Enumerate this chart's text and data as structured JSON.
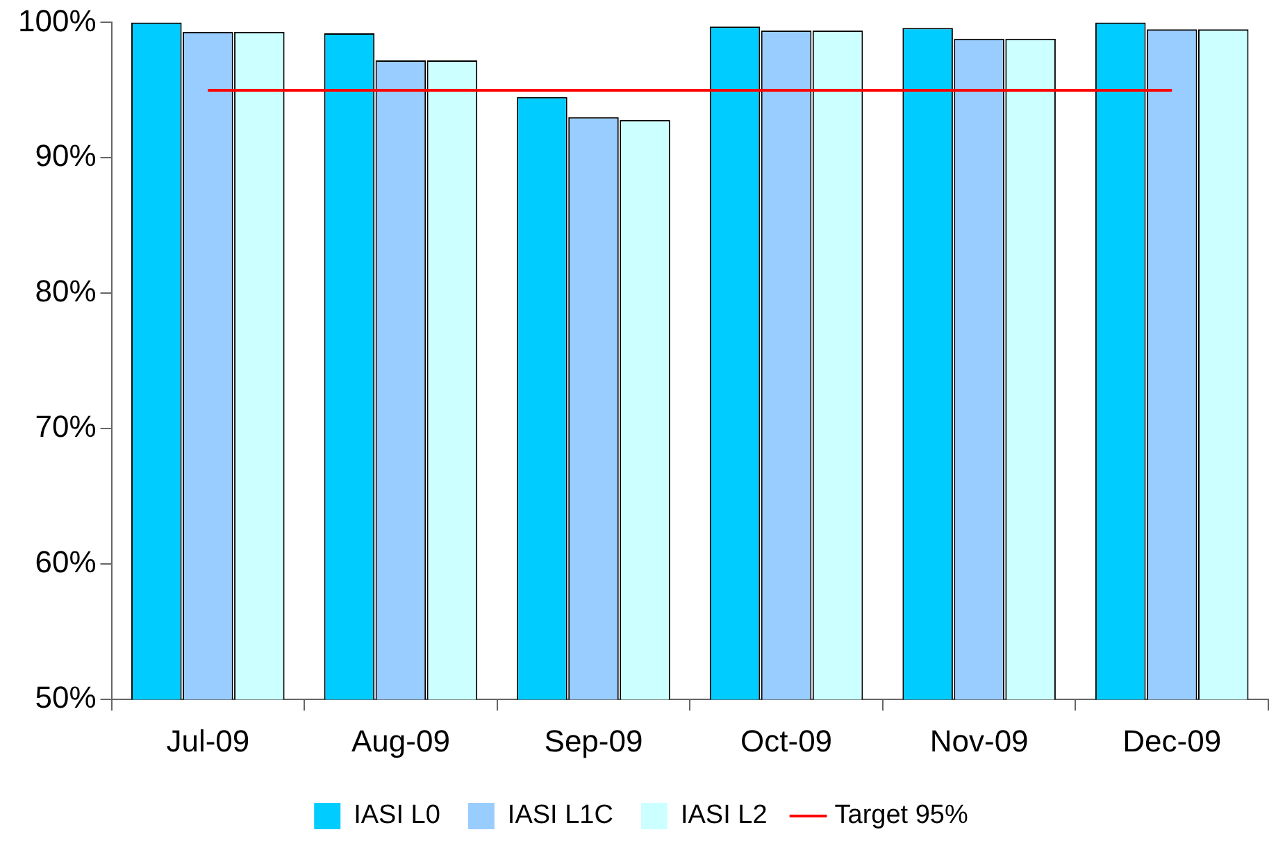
{
  "chart_data": {
    "type": "bar",
    "categories": [
      "Jul-09",
      "Aug-09",
      "Sep-09",
      "Oct-09",
      "Nov-09",
      "Dec-09"
    ],
    "series": [
      {
        "name": "IASI L0",
        "color": "#00ccff",
        "values": [
          100,
          99.2,
          94.5,
          99.7,
          99.6,
          100
        ]
      },
      {
        "name": "IASI L1C",
        "color": "#99ccff",
        "values": [
          99.3,
          97.2,
          93.0,
          99.4,
          98.8,
          99.5
        ]
      },
      {
        "name": "IASI L2",
        "color": "#ccffff",
        "values": [
          99.3,
          97.2,
          92.8,
          99.4,
          98.8,
          99.5
        ]
      },
      {
        "name": "Target 95%",
        "type": "line",
        "color": "#ff0000",
        "values": [
          95,
          95,
          95,
          95,
          95,
          95
        ]
      }
    ],
    "ylim": [
      50,
      100
    ],
    "yticks": [
      {
        "value": 50,
        "label": "50%"
      },
      {
        "value": 60,
        "label": "60%"
      },
      {
        "value": 70,
        "label": "70%"
      },
      {
        "value": 80,
        "label": "80%"
      },
      {
        "value": 90,
        "label": "90%"
      },
      {
        "value": 100,
        "label": "100%"
      }
    ],
    "grid": false,
    "legend": "bottom",
    "marker": "none"
  }
}
